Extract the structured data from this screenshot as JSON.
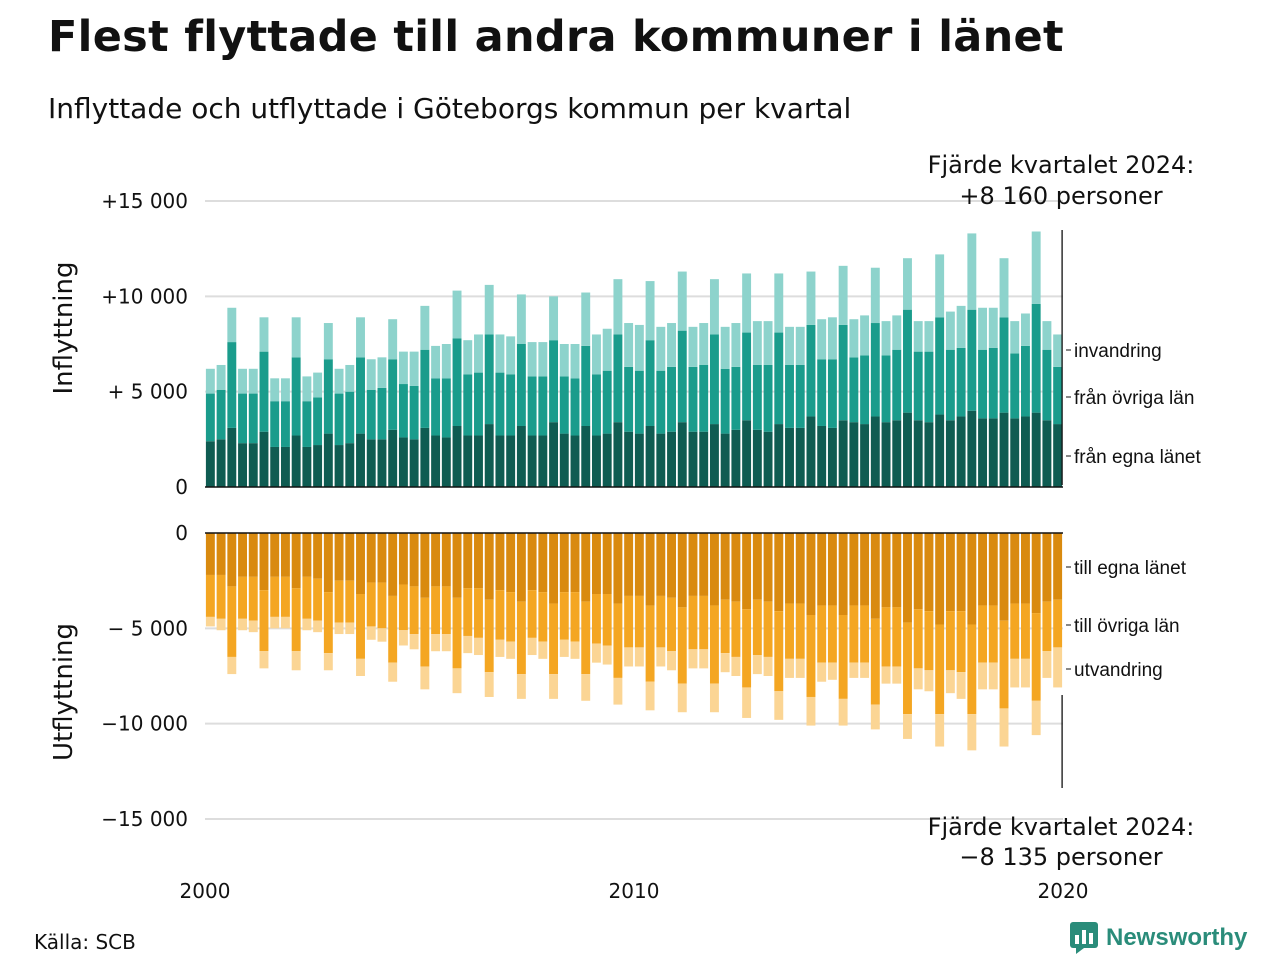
{
  "title": "Flest flyttade till andra kommuner i länet",
  "subtitle": "Inflyttade och utflyttade i Göteborgs kommun per kvartal",
  "source": "Källa: SCB",
  "brand": "Newsworthy",
  "annotation_top": [
    "Fjärde kvartalet 2024:",
    "+8 160 personer"
  ],
  "annotation_bottom": [
    "Fjärde kvartalet 2024:",
    "−8 135 personer"
  ],
  "colors": {
    "in_own": "#0f5c52",
    "in_other": "#1a9c8c",
    "in_immig": "#8dd3cc",
    "out_own": "#d98a0f",
    "out_other": "#f4a622",
    "out_emig": "#fbd594",
    "grid": "#dddddd"
  },
  "chart_data": {
    "type": "bar",
    "x_label": "",
    "x_ticks": [
      "2000",
      "2010",
      "2020"
    ],
    "top_panel": {
      "ylabel": "Inflyttning",
      "y_ticks": [
        "0",
        "+ 5 000",
        "+10 000",
        "+15 000"
      ],
      "ylim": [
        0,
        15000
      ],
      "legend": [
        "invandring",
        "från övriga län",
        "från egna länet"
      ]
    },
    "bottom_panel": {
      "ylabel": "Utflyttning",
      "y_ticks": [
        "0",
        "− 5 000",
        "−10 000",
        "−15 000"
      ],
      "ylim": [
        -15000,
        0
      ],
      "legend": [
        "till egna länet",
        "till övriga län",
        "utvandring"
      ]
    },
    "start_year": 2000,
    "quarters": [
      "Q1",
      "Q2",
      "Q3",
      "Q4"
    ],
    "inflow": {
      "own": [
        2400,
        2500,
        3100,
        2300,
        2300,
        2900,
        2100,
        2100,
        2700,
        2100,
        2200,
        2800,
        2200,
        2300,
        2800,
        2500,
        2500,
        3000,
        2600,
        2500,
        3100,
        2700,
        2600,
        3200,
        2700,
        2700,
        3300,
        2700,
        2700,
        3200,
        2700,
        2700,
        3400,
        2800,
        2700,
        3200,
        2700,
        2800,
        3400,
        2900,
        2800,
        3200,
        2800,
        2900,
        3400,
        2900,
        2900,
        3300,
        2800,
        3000,
        3500,
        3000,
        2900,
        3300,
        3100,
        3100,
        3700,
        3200,
        3100,
        3500,
        3400,
        3300,
        3700,
        3400,
        3500,
        3900,
        3500,
        3400,
        3800,
        3500,
        3700,
        4000,
        3600,
        3600,
        3900,
        3600,
        3700,
        3900,
        3500,
        3300
      ],
      "other": [
        2500,
        2600,
        4500,
        2600,
        2600,
        4200,
        2400,
        2400,
        4100,
        2400,
        2500,
        3900,
        2700,
        2700,
        4000,
        2600,
        2700,
        3700,
        2800,
        2800,
        4100,
        3000,
        3100,
        4600,
        3200,
        3300,
        4700,
        3300,
        3200,
        4300,
        3100,
        3100,
        4300,
        3000,
        3000,
        4200,
        3200,
        3300,
        4600,
        3400,
        3300,
        4500,
        3300,
        3400,
        4800,
        3400,
        3500,
        4700,
        3400,
        3300,
        4600,
        3400,
        3500,
        4800,
        3300,
        3300,
        4800,
        3500,
        3600,
        5000,
        3400,
        3600,
        4900,
        3500,
        3700,
        5400,
        3600,
        3700,
        5100,
        3700,
        3600,
        5300,
        3600,
        3700,
        5000,
        3400,
        3700,
        5700,
        3700,
        3000
      ],
      "immig": [
        1300,
        1300,
        1800,
        1300,
        1300,
        1800,
        1200,
        1200,
        2100,
        1300,
        1300,
        1900,
        1300,
        1400,
        2100,
        1600,
        1600,
        2100,
        1700,
        1800,
        2300,
        1700,
        1800,
        2500,
        1800,
        2000,
        2600,
        2000,
        2000,
        2600,
        1800,
        1800,
        2300,
        1700,
        1800,
        2800,
        2100,
        2200,
        2900,
        2300,
        2400,
        3100,
        2300,
        2300,
        3100,
        2100,
        2200,
        2900,
        2200,
        2300,
        3100,
        2300,
        2300,
        3100,
        2000,
        2000,
        2800,
        2100,
        2200,
        3100,
        2000,
        2100,
        2900,
        1800,
        1800,
        2700,
        1600,
        1600,
        3300,
        2000,
        2200,
        4000,
        2200,
        2100,
        3100,
        1700,
        1700,
        3800,
        1500,
        1700
      ]
    },
    "outflow": {
      "own": [
        -2200,
        -2200,
        -2800,
        -2300,
        -2300,
        -3000,
        -2300,
        -2300,
        -2900,
        -2300,
        -2400,
        -3100,
        -2500,
        -2500,
        -3200,
        -2600,
        -2600,
        -3300,
        -2700,
        -2800,
        -3400,
        -2800,
        -2800,
        -3400,
        -2900,
        -2900,
        -3500,
        -3000,
        -3100,
        -3600,
        -3000,
        -3100,
        -3700,
        -3100,
        -3100,
        -3600,
        -3200,
        -3200,
        -3700,
        -3300,
        -3300,
        -3800,
        -3300,
        -3400,
        -3900,
        -3300,
        -3300,
        -3800,
        -3500,
        -3600,
        -4000,
        -3500,
        -3600,
        -4100,
        -3700,
        -3700,
        -4300,
        -3800,
        -3800,
        -4300,
        -3800,
        -3800,
        -4500,
        -3900,
        -3900,
        -4700,
        -4000,
        -4100,
        -4800,
        -4100,
        -4100,
        -4800,
        -3800,
        -3800,
        -4600,
        -3700,
        -3700,
        -4200,
        -3600,
        -3500
      ],
      "other": [
        -2200,
        -2300,
        -3700,
        -2200,
        -2300,
        -3200,
        -2100,
        -2100,
        -3300,
        -2200,
        -2200,
        -3200,
        -2200,
        -2200,
        -3400,
        -2300,
        -2400,
        -3500,
        -2400,
        -2500,
        -3600,
        -2500,
        -2500,
        -3700,
        -2500,
        -2600,
        -3800,
        -2600,
        -2600,
        -3800,
        -2500,
        -2600,
        -3700,
        -2500,
        -2600,
        -3800,
        -2600,
        -2700,
        -3900,
        -2700,
        -2700,
        -4000,
        -2700,
        -2800,
        -4000,
        -2800,
        -2800,
        -4100,
        -2800,
        -2900,
        -4100,
        -2900,
        -2900,
        -4200,
        -2900,
        -2900,
        -4300,
        -3000,
        -3000,
        -4400,
        -3000,
        -3000,
        -4500,
        -3100,
        -3100,
        -4800,
        -3100,
        -3100,
        -4700,
        -3100,
        -3200,
        -4700,
        -3000,
        -3000,
        -4600,
        -2900,
        -2900,
        -4600,
        -2600,
        -2500
      ],
      "emig": [
        -500,
        -600,
        -900,
        -600,
        -600,
        -900,
        -600,
        -600,
        -1000,
        -600,
        -600,
        -900,
        -600,
        -600,
        -900,
        -700,
        -700,
        -1000,
        -800,
        -800,
        -1200,
        -900,
        -900,
        -1300,
        -900,
        -900,
        -1300,
        -900,
        -900,
        -1300,
        -900,
        -900,
        -1300,
        -900,
        -900,
        -1400,
        -1000,
        -1000,
        -1400,
        -1000,
        -1000,
        -1500,
        -1000,
        -1000,
        -1500,
        -1000,
        -1000,
        -1500,
        -1000,
        -1000,
        -1600,
        -1000,
        -1000,
        -1500,
        -1000,
        -1000,
        -1500,
        -1000,
        -900,
        -1400,
        -800,
        -800,
        -1300,
        -900,
        -900,
        -1300,
        -1100,
        -1100,
        -1700,
        -1200,
        -1400,
        -1900,
        -1400,
        -1400,
        -2000,
        -1500,
        -1500,
        -1800,
        -1400,
        -2100
      ]
    }
  }
}
